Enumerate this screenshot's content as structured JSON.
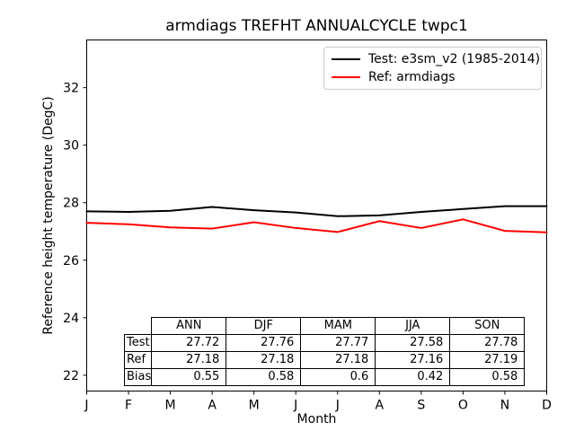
{
  "figure": {
    "background": "#ffffff",
    "axis_color": "#000000",
    "legend_border_color": "#cccccc"
  },
  "chart_data": {
    "type": "line",
    "title": "armdiags TREFHT ANNUALCYCLE twpc1",
    "xlabel": "Month",
    "ylabel": "Reference height temperature (DegC)",
    "x_ticklabels": [
      "J",
      "F",
      "M",
      "A",
      "M",
      "J",
      "J",
      "A",
      "S",
      "O",
      "N",
      "D"
    ],
    "y_ticks": [
      22,
      24,
      26,
      28,
      30,
      32
    ],
    "ylim": [
      21.45,
      33.66
    ],
    "grid": false,
    "legend_position": "upper-right",
    "series": [
      {
        "name": "Test: e3sm_v2 (1985-2014)",
        "color": "#000000",
        "values": [
          27.7,
          27.68,
          27.72,
          27.85,
          27.74,
          27.66,
          27.53,
          27.56,
          27.68,
          27.78,
          27.88,
          27.88
        ]
      },
      {
        "name": "Ref: armdiags",
        "color": "#ff0000",
        "values": [
          27.3,
          27.25,
          27.14,
          27.1,
          27.32,
          27.12,
          26.98,
          27.36,
          27.12,
          27.42,
          27.02,
          26.97
        ]
      }
    ],
    "table": {
      "col_headers": [
        "ANN",
        "DJF",
        "MAM",
        "JJA",
        "SON"
      ],
      "rows": [
        {
          "label": "Test",
          "values": [
            "27.72",
            "27.76",
            "27.77",
            "27.58",
            "27.78"
          ]
        },
        {
          "label": "Ref",
          "values": [
            "27.18",
            "27.18",
            "27.18",
            "27.16",
            "27.19"
          ]
        },
        {
          "label": "Bias",
          "values": [
            "0.55",
            "0.58",
            "0.6",
            "0.42",
            "0.58"
          ]
        }
      ]
    }
  }
}
